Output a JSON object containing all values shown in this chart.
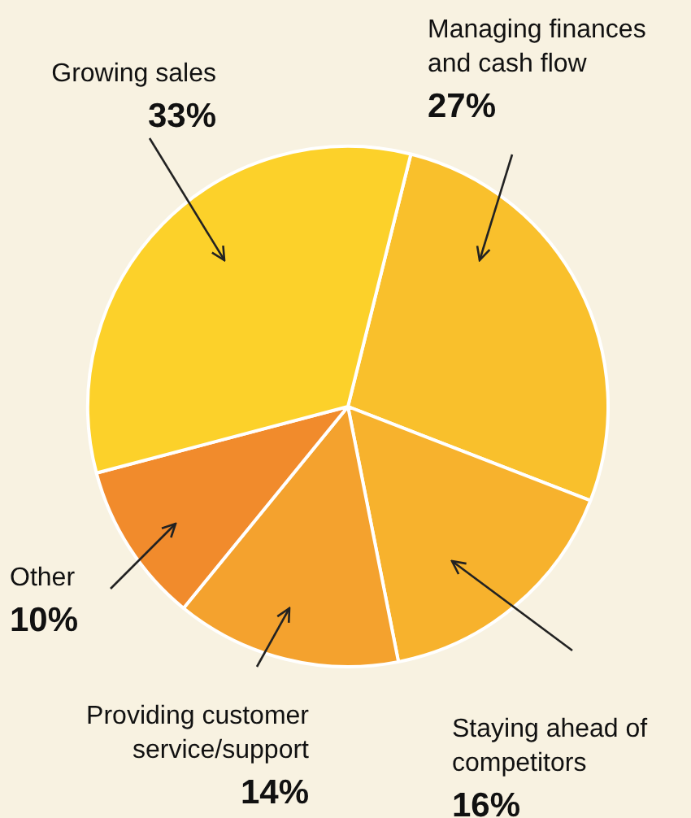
{
  "chart_data": {
    "type": "pie",
    "categories": [
      "Managing finances and cash flow",
      "Staying ahead of competitors",
      "Providing customer service/support",
      "Other",
      "Growing sales"
    ],
    "values": [
      27,
      16,
      14,
      10,
      33
    ],
    "value_labels": [
      "27%",
      "16%",
      "14%",
      "10%",
      "33%"
    ],
    "colors": [
      "#f9c02c",
      "#f7b22d",
      "#f4a22e",
      "#f18b2c",
      "#fcd12a"
    ],
    "legend": false
  }
}
